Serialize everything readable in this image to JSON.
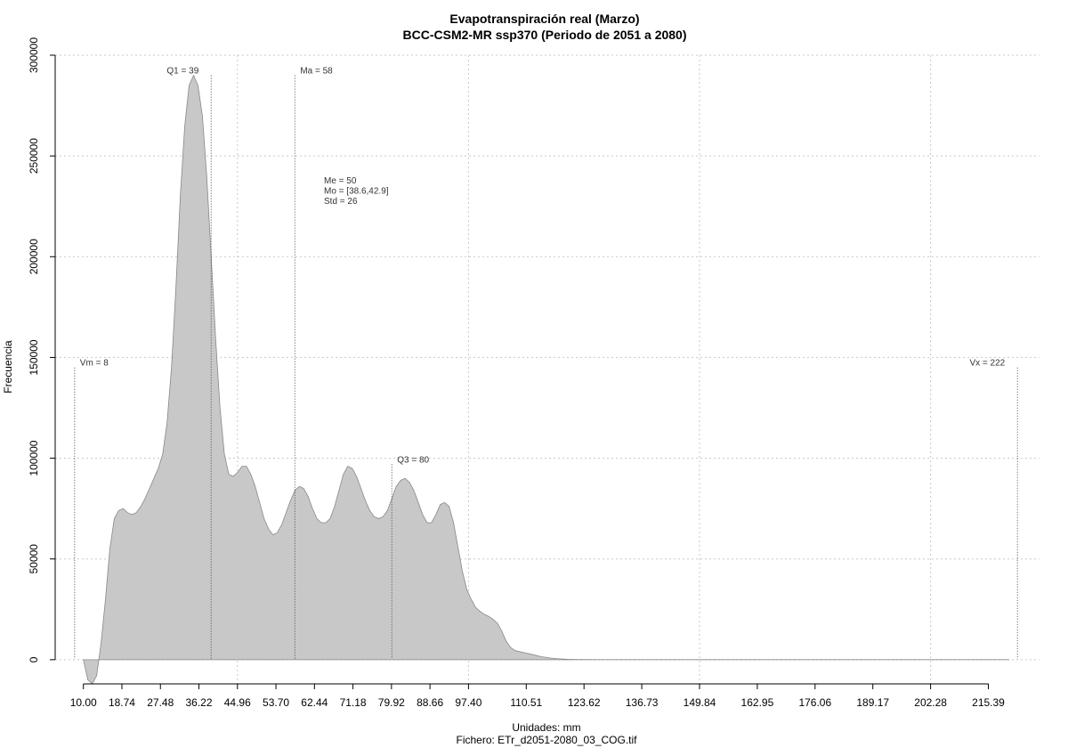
{
  "chart_data": {
    "type": "area",
    "title": "Evapotranspiración real (Marzo)",
    "subtitle": "BCC-CSM2-MR ssp370 (Periodo de 2051 a 2080)",
    "xlabel": "Unidades: mm",
    "ylabel": "Frecuencia",
    "caption": "Fichero: ETr_d2051-2080_03_COG.tif",
    "xlim": [
      4,
      227
    ],
    "ylim": [
      -12000,
      300000
    ],
    "grid": true,
    "fill_color": "#c8c8c8",
    "line_color": "#888888",
    "x_ticks": [
      "10.00",
      "18.74",
      "27.48",
      "36.22",
      "44.96",
      "53.70",
      "62.44",
      "71.18",
      "79.92",
      "88.66",
      "97.40",
      "110.51",
      "123.62",
      "136.73",
      "149.84",
      "162.95",
      "176.06",
      "189.17",
      "202.28",
      "215.39"
    ],
    "y_ticks": [
      "0",
      "50000",
      "100000",
      "150000",
      "200000",
      "250000",
      "300000"
    ],
    "x_grid": [
      44.96,
      97.4,
      149.84,
      202.28
    ],
    "y_grid": [
      0,
      50000,
      100000,
      150000,
      200000,
      250000,
      300000
    ],
    "x": [
      10,
      11,
      12,
      13,
      14,
      15,
      16,
      17,
      18,
      19,
      20,
      21,
      22,
      23,
      24,
      25,
      26,
      27,
      28,
      29,
      30,
      31,
      32,
      33,
      34,
      35,
      36,
      37,
      38,
      39,
      40,
      41,
      42,
      43,
      44,
      45,
      46,
      47,
      48,
      49,
      50,
      51,
      52,
      53,
      54,
      55,
      56,
      57,
      58,
      59,
      60,
      61,
      62,
      63,
      64,
      65,
      66,
      67,
      68,
      69,
      70,
      71,
      72,
      73,
      74,
      75,
      76,
      77,
      78,
      79,
      80,
      81,
      82,
      83,
      84,
      85,
      86,
      87,
      88,
      89,
      90,
      91,
      92,
      93,
      94,
      95,
      96,
      97,
      98,
      99,
      100,
      101,
      102,
      103,
      104,
      105,
      106,
      107,
      108,
      110,
      112,
      114,
      116,
      118,
      120,
      122,
      124,
      126,
      128,
      130,
      132,
      134,
      136,
      138,
      140,
      145,
      150,
      160,
      180,
      200,
      220
    ],
    "y": [
      0,
      -10000,
      -12000,
      -8000,
      8000,
      30000,
      55000,
      70000,
      74000,
      75000,
      73000,
      72000,
      73000,
      76000,
      80000,
      85000,
      90000,
      95000,
      102000,
      118000,
      145000,
      185000,
      230000,
      265000,
      285000,
      290000,
      285000,
      270000,
      240000,
      200000,
      160000,
      125000,
      102000,
      92000,
      91000,
      93000,
      96000,
      96000,
      92000,
      86000,
      78000,
      70000,
      65000,
      62000,
      63000,
      67000,
      73000,
      79000,
      84000,
      86000,
      85000,
      81000,
      75000,
      70000,
      68000,
      68000,
      70000,
      76000,
      84000,
      92000,
      96000,
      95000,
      91000,
      85000,
      79000,
      74000,
      71000,
      70000,
      71000,
      74000,
      80000,
      86000,
      89000,
      90000,
      88000,
      84000,
      78000,
      72000,
      68000,
      68000,
      72000,
      77000,
      78000,
      76000,
      68000,
      56000,
      44000,
      35000,
      30000,
      26000,
      24000,
      22500,
      21500,
      20000,
      18000,
      14000,
      9000,
      6000,
      4500,
      3500,
      2500,
      1500,
      800,
      400,
      200,
      100,
      50,
      0,
      0,
      0,
      0,
      0,
      0,
      0,
      0,
      0,
      0,
      0,
      0,
      0,
      0
    ],
    "markers": [
      {
        "label": "Vm = 8",
        "x": 8,
        "top": 145000,
        "anchor": "start"
      },
      {
        "label": "Q1 = 39",
        "x": 39,
        "top": 290000,
        "anchor": "end"
      },
      {
        "label": "Ma = 58",
        "x": 58,
        "top": 290000,
        "anchor": "start"
      },
      {
        "label": "Q3 = 80",
        "x": 80,
        "top": 97000,
        "anchor": "start"
      },
      {
        "label": "Vx = 222",
        "x": 222,
        "top": 145000,
        "anchor": "end"
      }
    ],
    "stats": [
      "Me = 50",
      "Mo = [38.6,42.9]",
      "Std = 26"
    ]
  }
}
